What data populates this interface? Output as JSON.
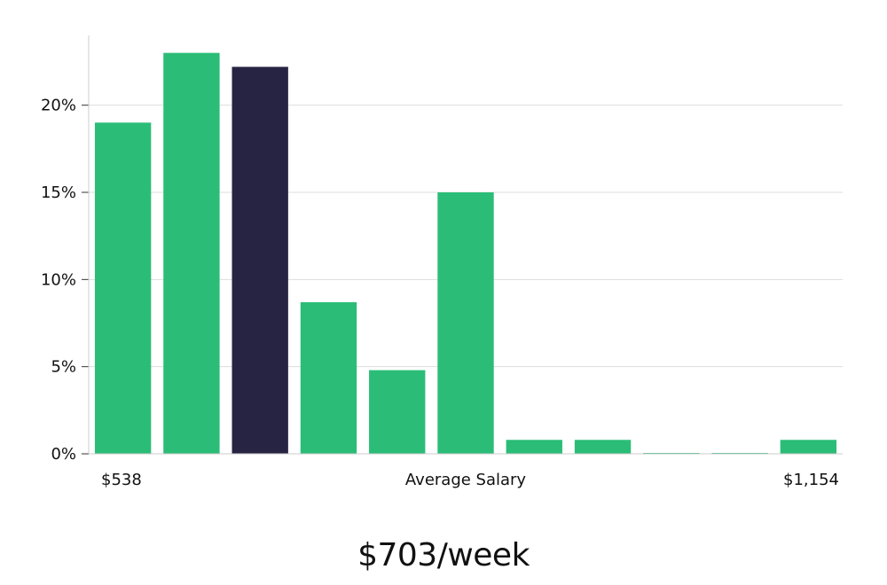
{
  "chart_data": {
    "type": "bar",
    "values": [
      19.0,
      23.0,
      22.2,
      8.7,
      4.8,
      15.0,
      0.8,
      0.8,
      0.05,
      0.05,
      0.8
    ],
    "highlight_index": 2,
    "ylim": [
      0,
      24
    ],
    "yticks": [
      0,
      5,
      10,
      15,
      20
    ],
    "ytick_labels": [
      "0%",
      "5%",
      "10%",
      "15%",
      "20%"
    ],
    "x_min_label": "$538",
    "x_max_label": "$1,154",
    "xlabel": "Average Salary",
    "grid": true,
    "colors": {
      "bar": "#2bbd77",
      "highlight": "#272443",
      "grid": "#dddddd",
      "axis": "#cccccc"
    }
  },
  "headline": "$703/week"
}
